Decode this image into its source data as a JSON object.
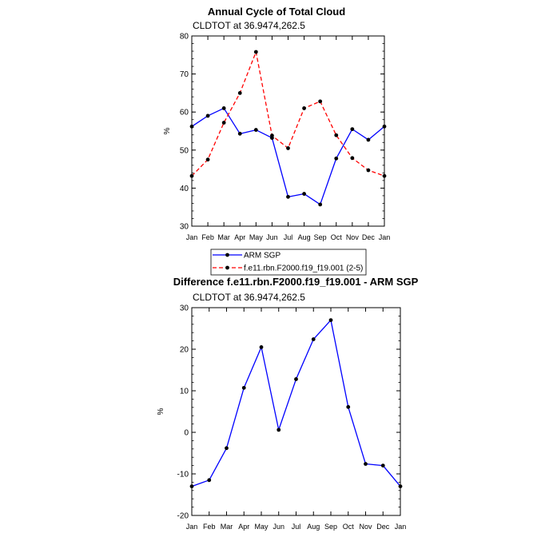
{
  "chart_data": [
    {
      "type": "line",
      "title": "Annual Cycle of Total Cloud",
      "subtitle": "CLDTOT at 36.9474,262.5",
      "xlabel": "",
      "ylabel": "%",
      "categories": [
        "Jan",
        "Feb",
        "Mar",
        "Apr",
        "May",
        "Jun",
        "Jul",
        "Aug",
        "Sep",
        "Oct",
        "Nov",
        "Dec",
        "Jan"
      ],
      "ylim": [
        30,
        80
      ],
      "yticks": [
        "30",
        "40",
        "50",
        "60",
        "70",
        "80"
      ],
      "series": [
        {
          "name": "ARM SGP",
          "color": "#0000ff",
          "dash": "solid",
          "values": [
            56.2,
            59.0,
            61.0,
            54.3,
            55.3,
            53.2,
            37.7,
            38.5,
            35.7,
            47.8,
            55.5,
            52.7,
            56.2
          ]
        },
        {
          "name": "f.e11.rbn.F2000.f19_f19.001 (2-5)",
          "color": "#ff0000",
          "dash": "dashed",
          "values": [
            43.2,
            47.5,
            57.2,
            65.0,
            75.8,
            53.8,
            50.5,
            61.0,
            62.8,
            53.9,
            47.9,
            44.7,
            43.2
          ]
        }
      ],
      "legend": [
        "ARM SGP",
        "f.e11.rbn.F2000.f19_f19.001 (2-5)"
      ]
    },
    {
      "type": "line",
      "title": "Difference f.e11.rbn.F2000.f19_f19.001 - ARM SGP",
      "subtitle": "CLDTOT at 36.9474,262.5",
      "xlabel": "",
      "ylabel": "%",
      "categories": [
        "Jan",
        "Feb",
        "Mar",
        "Apr",
        "May",
        "Jun",
        "Jul",
        "Aug",
        "Sep",
        "Oct",
        "Nov",
        "Dec",
        "Jan"
      ],
      "ylim": [
        -20,
        30
      ],
      "yticks": [
        "-20",
        "-10",
        "0",
        "10",
        "20",
        "30"
      ],
      "series": [
        {
          "name": "Difference",
          "color": "#0000ff",
          "dash": "solid",
          "values": [
            -13.0,
            -11.5,
            -3.8,
            10.7,
            20.5,
            0.6,
            12.8,
            22.4,
            27.0,
            6.1,
            -7.6,
            -8.0,
            -13.0
          ]
        }
      ]
    }
  ]
}
